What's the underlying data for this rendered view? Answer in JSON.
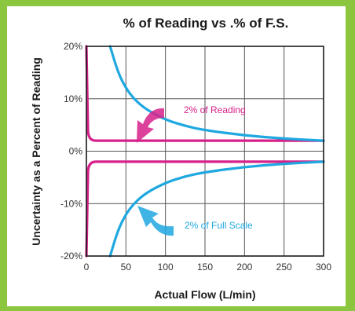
{
  "chart_data": {
    "type": "line",
    "title": "% of Reading vs .% of F.S.",
    "xlabel": "Actual Flow (L/min)",
    "ylabel": "Uncertainty as a Percent of Reading",
    "xlim": [
      0,
      300
    ],
    "ylim": [
      -20,
      20
    ],
    "x_ticks": [
      "0",
      "50",
      "100",
      "150",
      "200",
      "250",
      "300"
    ],
    "y_ticks": [
      "20%",
      "10%",
      "0%",
      "-10%",
      "-20%"
    ],
    "grid": true,
    "series": [
      {
        "name": "2% of Reading",
        "color": "#d6218a",
        "x": [
          0,
          2,
          5,
          300
        ],
        "upper": [
          20,
          20,
          2,
          2
        ],
        "lower": [
          -20,
          -20,
          -2,
          -2
        ]
      },
      {
        "name": "2% of Full Scale",
        "color": "#1fa8e0",
        "x": [
          30,
          40,
          50,
          60,
          75,
          100,
          125,
          150,
          200,
          250,
          300
        ],
        "upper": [
          20,
          15,
          12,
          10,
          8,
          6,
          4.8,
          4,
          3,
          2.4,
          2
        ],
        "lower": [
          -20,
          -15,
          -12,
          -10,
          -8,
          -6,
          -4.8,
          -4,
          -3,
          -2.4,
          -2
        ]
      }
    ],
    "annotations": [
      {
        "text": "2% of Reading",
        "color": "#d6218a"
      },
      {
        "text": "2% of Full Scale",
        "color": "#1fa8e0"
      }
    ]
  }
}
